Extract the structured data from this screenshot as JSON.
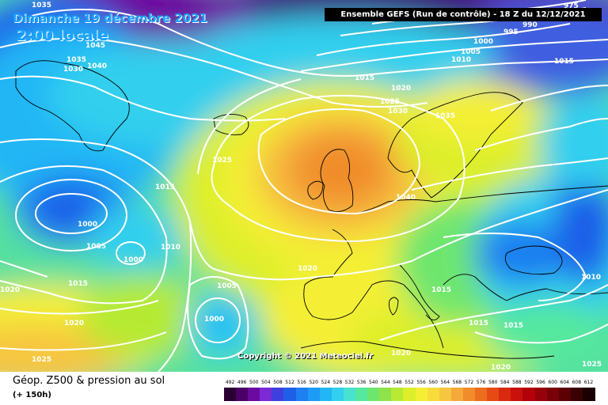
{
  "header": {
    "date_title": "Dimanche 19 décembre 2021",
    "time_title": "2:00 locale",
    "run_info": "Ensemble GEFS  (Run de contrôle)  -  18 Z du 12/12/2021"
  },
  "copyright": "Copyright © 2021 Meteociel.fr",
  "footer": {
    "title": "Géop. Z500 & pression au sol",
    "subtitle": "(+ 150h)"
  },
  "isobar_labels": [
    "1035",
    "1045",
    "1040",
    "1035",
    "1030",
    "975",
    "990",
    "995",
    "1000",
    "1005",
    "1010",
    "1015",
    "1015",
    "1020",
    "1025",
    "1030",
    "1035",
    "1025",
    "1015",
    "1040",
    "1000",
    "1005",
    "1000",
    "1010",
    "1020",
    "1015",
    "1005",
    "1000",
    "1020",
    "1025",
    "1020",
    "1015",
    "1015",
    "1015",
    "1020",
    "1010",
    "1020",
    "1025"
  ],
  "legend": {
    "values": [
      "492",
      "496",
      "500",
      "504",
      "508",
      "512",
      "516",
      "520",
      "524",
      "528",
      "532",
      "536",
      "540",
      "544",
      "548",
      "552",
      "556",
      "560",
      "564",
      "568",
      "572",
      "576",
      "580",
      "584",
      "588",
      "592",
      "596",
      "600",
      "604",
      "608",
      "612"
    ],
    "colors": [
      "#2a0033",
      "#4b0066",
      "#6a0aa0",
      "#7a2bd6",
      "#3f3fe0",
      "#1f5fe8",
      "#1e7ff0",
      "#1c9cf5",
      "#22b6f5",
      "#33cfee",
      "#49e2d0",
      "#55e89e",
      "#6ee66e",
      "#8fe34a",
      "#b6ea33",
      "#dcef2a",
      "#f4ef34",
      "#f7dc3c",
      "#f6c640",
      "#f4a93a",
      "#f08c2b",
      "#ec6d1e",
      "#e64b16",
      "#d82a10",
      "#c9100c",
      "#b3000a",
      "#96000a",
      "#7a0008",
      "#5c0006",
      "#3a0004",
      "#1a0000"
    ]
  },
  "colors": {
    "title_blue": "#1aa3ff",
    "isobar": "#ffffff",
    "coast": "#000000"
  }
}
